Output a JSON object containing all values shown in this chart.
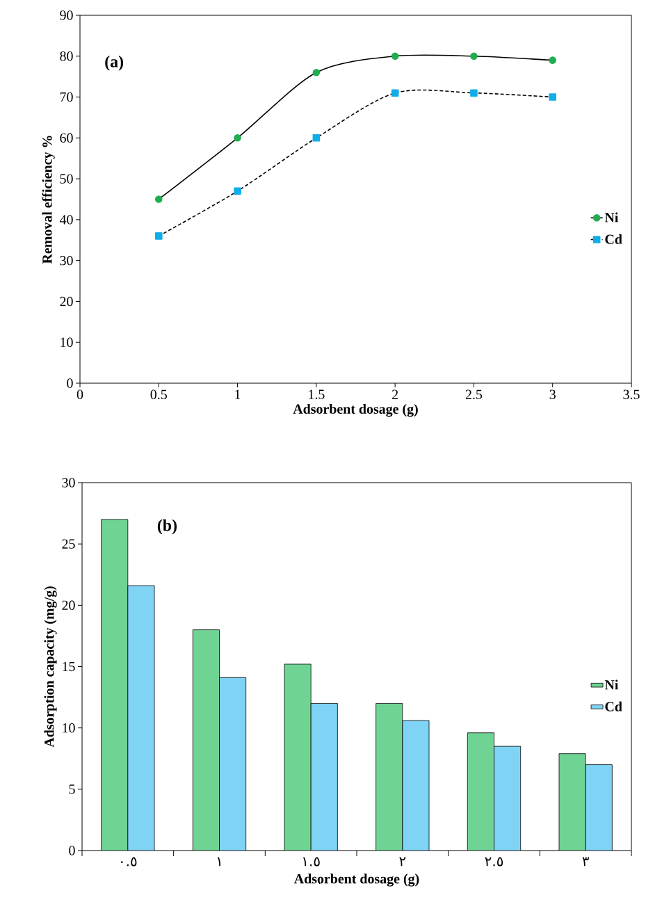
{
  "chart_data": [
    {
      "type": "line",
      "annotations": [
        "(a)"
      ],
      "xlabel": "Adsorbent dosage (g)",
      "ylabel": "Removal efficiency %",
      "xlim": [
        0,
        3.5
      ],
      "xticks": [
        0,
        0.5,
        1,
        1.5,
        2,
        2.5,
        3,
        3.5
      ],
      "ylim": [
        0,
        90
      ],
      "yticks": [
        0,
        10,
        20,
        30,
        40,
        50,
        60,
        70,
        80,
        90
      ],
      "legend": "right",
      "x": [
        0.5,
        1,
        1.5,
        2,
        2.5,
        3
      ],
      "series": [
        {
          "name": "Ni",
          "color": "#1fae4f",
          "marker": "circle",
          "line_style": "solid",
          "values": [
            45,
            60,
            76,
            80,
            80,
            79
          ]
        },
        {
          "name": "Cd",
          "color": "#10aee8",
          "marker": "square",
          "line_style": "dashed",
          "values": [
            36,
            47,
            60,
            71,
            71,
            70
          ]
        }
      ]
    },
    {
      "type": "bar",
      "annotations": [
        "(b)"
      ],
      "xlabel": "Adsorbent dosage (g)",
      "ylabel": "Adsorption capacity (mg/g)",
      "ylim": [
        0,
        30
      ],
      "yticks": [
        0,
        5,
        10,
        15,
        20,
        25,
        30
      ],
      "legend": "right",
      "categories": [
        "٠.٥",
        "١",
        "١.٥",
        "٢",
        "٢.٥",
        "٣"
      ],
      "series": [
        {
          "name": "Ni",
          "color": "#6fd394",
          "values": [
            27.0,
            18.0,
            15.2,
            12.0,
            9.6,
            7.9
          ]
        },
        {
          "name": "Cd",
          "color": "#7fd3f4",
          "values": [
            21.6,
            14.1,
            12.0,
            10.6,
            8.5,
            7.0
          ]
        }
      ]
    }
  ]
}
